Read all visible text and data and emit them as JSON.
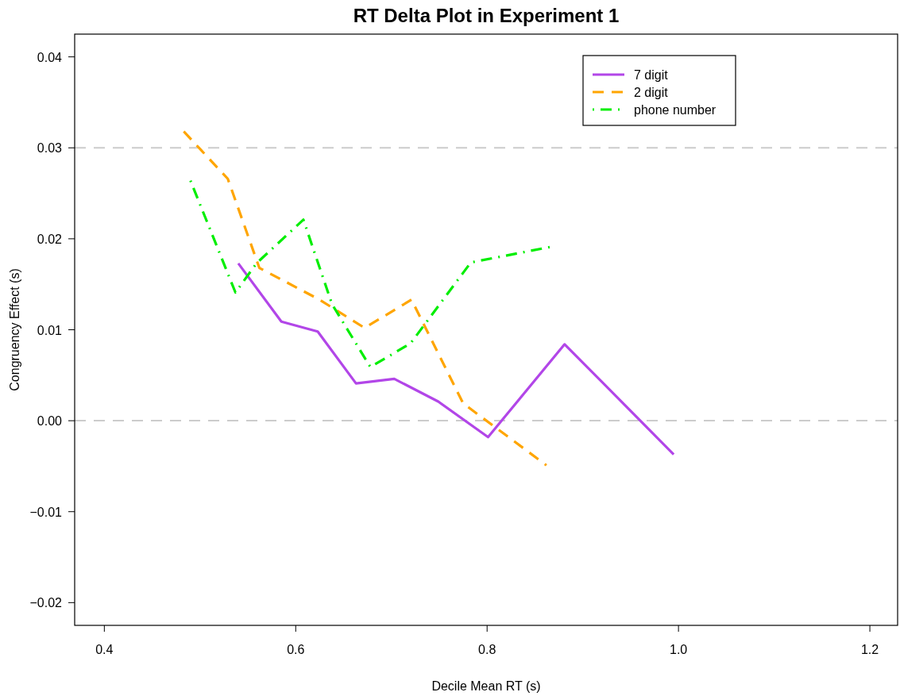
{
  "chart_data": {
    "type": "line",
    "title": "RT Delta Plot in Experiment 1",
    "xlabel": "Decile Mean RT (s)",
    "ylabel": "Congruency Effect (s)",
    "xlim": [
      0.369,
      1.229
    ],
    "ylim": [
      -0.0225,
      0.0425
    ],
    "xticks": [
      {
        "value": 0.4,
        "label": "0.4"
      },
      {
        "value": 0.6,
        "label": "0.6"
      },
      {
        "value": 0.8,
        "label": "0.8"
      },
      {
        "value": 1.0,
        "label": "1.0"
      },
      {
        "value": 1.2,
        "label": "1.2"
      }
    ],
    "yticks": [
      {
        "value": -0.02,
        "label": "−0.02"
      },
      {
        "value": -0.01,
        "label": "−0.01"
      },
      {
        "value": 0,
        "label": "0.00"
      },
      {
        "value": 0.01,
        "label": "0.01"
      },
      {
        "value": 0.02,
        "label": "0.02"
      },
      {
        "value": 0.03,
        "label": "0.03"
      },
      {
        "value": 0.04,
        "label": "0.04"
      }
    ],
    "ref_lines": [
      {
        "axis": "y",
        "value": 0.03,
        "color": "#cccccc",
        "line_style": "dashed"
      },
      {
        "axis": "y",
        "value": 0,
        "color": "#cccccc",
        "line_style": "dashed"
      }
    ],
    "legend": "top right",
    "grid": false,
    "series": [
      {
        "name": "7 digit",
        "color": "#b246e8",
        "line_style": "solid",
        "x": [
          0.54,
          0.585,
          0.623,
          0.663,
          0.703,
          0.749,
          0.801,
          0.881,
          0.995
        ],
        "values": [
          0.0173,
          0.0109,
          0.0098,
          0.0041,
          0.0046,
          0.0021,
          -0.0018,
          0.0084,
          -0.0037
        ]
      },
      {
        "name": "2 digit",
        "color": "#ffa500",
        "line_style": "dashed",
        "x": [
          0.483,
          0.529,
          0.562,
          0.625,
          0.672,
          0.721,
          0.775,
          0.862
        ],
        "values": [
          0.0318,
          0.0266,
          0.0168,
          0.0133,
          0.0102,
          0.0133,
          0.0019,
          -0.0049
        ]
      },
      {
        "name": "phone number",
        "color": "#00ee00",
        "line_style": "dashdot",
        "x": [
          0.49,
          0.537,
          0.559,
          0.608,
          0.638,
          0.678,
          0.72,
          0.783,
          0.866
        ],
        "values": [
          0.0264,
          0.0141,
          0.0173,
          0.0221,
          0.0128,
          0.0059,
          0.0085,
          0.0174,
          0.0191
        ]
      }
    ]
  }
}
